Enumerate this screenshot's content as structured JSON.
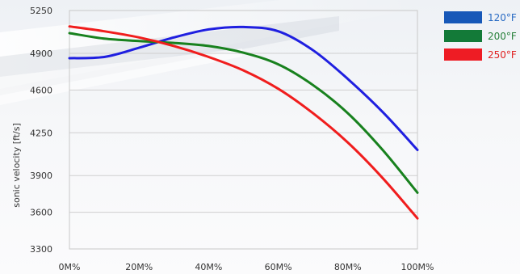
{
  "chart_data": {
    "type": "line",
    "title": "",
    "xlabel": "",
    "ylabel": "sonic velocity [ft/s]",
    "x_tick_labels": [
      "0M%",
      "20M%",
      "40M%",
      "60M%",
      "80M%",
      "100M%"
    ],
    "x": [
      0,
      10,
      20,
      30,
      40,
      50,
      60,
      70,
      80,
      90,
      100
    ],
    "xlim": [
      0,
      100
    ],
    "ylim": [
      3300,
      5250
    ],
    "y_ticks": [
      3300,
      3600,
      3900,
      4250,
      4600,
      4900,
      5250
    ],
    "grid": true,
    "legend_position": "top-right",
    "series": [
      {
        "name": "120°F",
        "color": "#1f1fe0",
        "legend_swatch_color": "#1758b8",
        "label_color": "#2a6cc4",
        "values": [
          4860,
          4870,
          4945,
          5030,
          5095,
          5115,
          5080,
          4925,
          4690,
          4420,
          4110
        ]
      },
      {
        "name": "200°F",
        "color": "#18811e",
        "legend_swatch_color": "#137a38",
        "label_color": "#27803a",
        "values": [
          5065,
          5020,
          5000,
          4985,
          4960,
          4905,
          4810,
          4640,
          4410,
          4110,
          3760
        ]
      },
      {
        "name": "250°F",
        "color": "#f01d1d",
        "legend_swatch_color": "#ee1c24",
        "label_color": "#e02020",
        "values": [
          5120,
          5080,
          5030,
          4960,
          4870,
          4760,
          4610,
          4410,
          4170,
          3880,
          3550
        ]
      }
    ]
  }
}
